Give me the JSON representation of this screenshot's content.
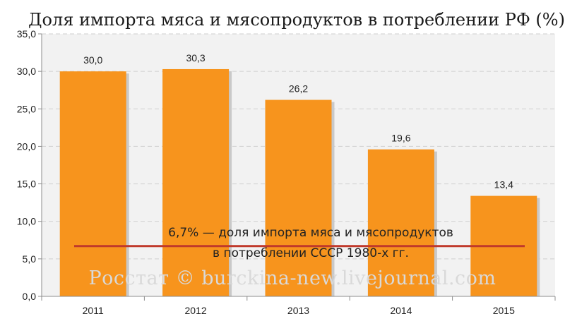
{
  "chart_data": {
    "type": "bar",
    "title": "Доля импорта  мяса и мясопродуктов в потреблении РФ (%)",
    "xlabel": "",
    "ylabel": "",
    "categories": [
      "2011",
      "2012",
      "2013",
      "2014",
      "2015"
    ],
    "values": [
      30.0,
      30.3,
      26.2,
      19.6,
      13.4
    ],
    "value_labels": [
      "30,0",
      "30,3",
      "26,2",
      "19,6",
      "13,4"
    ],
    "ylim": [
      0,
      35
    ],
    "yticks": [
      0,
      5,
      10,
      15,
      20,
      25,
      30,
      35
    ],
    "ytick_labels": [
      "0,0",
      "5,0",
      "10,0",
      "15,0",
      "20,0",
      "25,0",
      "30,0",
      "35,0"
    ],
    "grid": true,
    "legend": "none",
    "reference_line": {
      "value": 6.7,
      "label_line1": "6,7% — доля импорта  мяса и мясопродуктов",
      "label_line2": "в потреблении СССР 1980-х гг."
    },
    "watermark": "Росстат © burckina-new.livejournal.com",
    "colors": {
      "bar": "#f7941d",
      "bar_shadow": "#c9c9c9",
      "reference_line": "#c0392b",
      "plot_background": "#f2f2f2",
      "grid": "#cfcfcf",
      "axis": "#8c8c8c",
      "watermark": "#d9d9d9"
    }
  }
}
